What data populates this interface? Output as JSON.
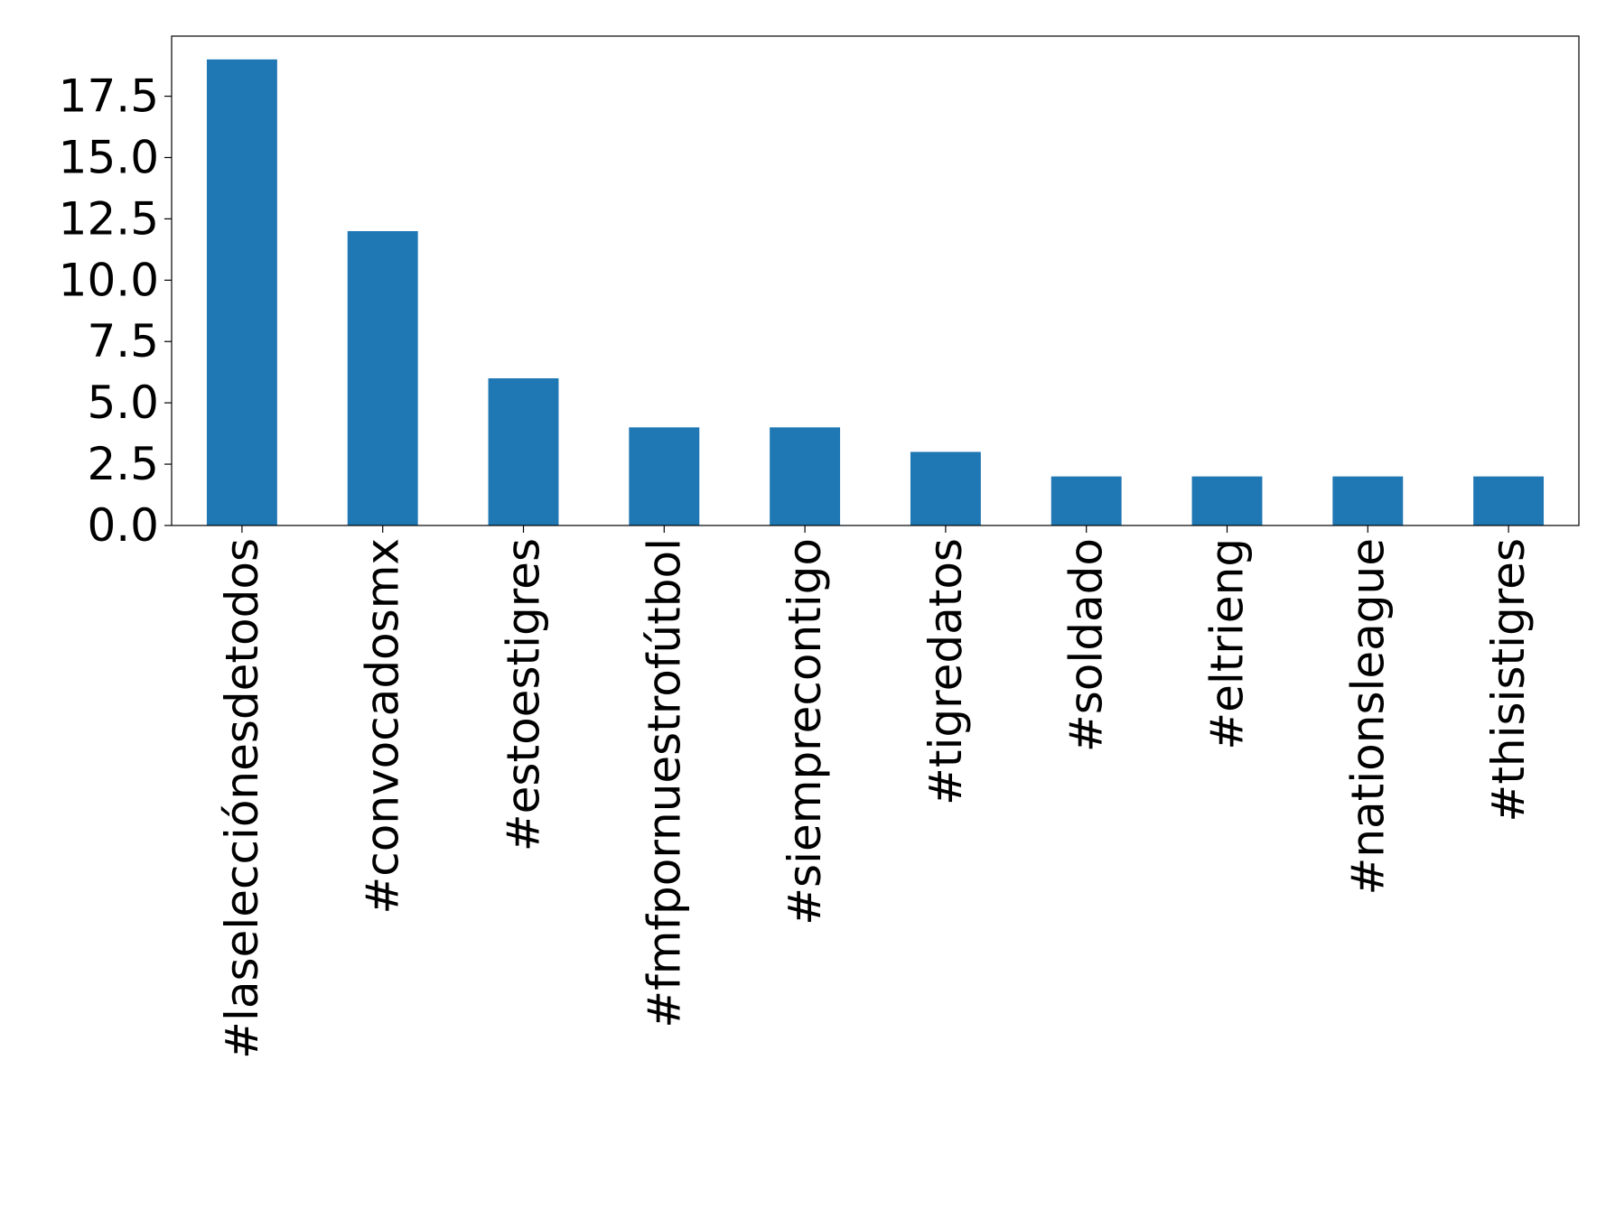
{
  "chart_data": {
    "type": "bar",
    "title": "",
    "xlabel": "",
    "ylabel": "",
    "categories": [
      "#laselecciónesdetodos",
      "#convocadosmx",
      "#estoestigres",
      "#fmfpornuestrofútbol",
      "#siemprecontigo",
      "#tigredatos",
      "#soldado",
      "#eltrieng",
      "#nationsleague",
      "#thisistigres"
    ],
    "values": [
      19,
      12,
      6,
      4,
      4,
      3,
      2,
      2,
      2,
      2
    ],
    "ylim": [
      0,
      19.95
    ],
    "yticks": [
      0,
      2.5,
      5,
      7.5,
      10,
      12.5,
      15,
      17.5
    ],
    "ytick_labels": [
      "0.0",
      "2.5",
      "5.0",
      "7.5",
      "10.0",
      "12.5",
      "15.0",
      "17.5"
    ],
    "x_tick_rotation": "vertical",
    "grid": false,
    "legend": "none",
    "bar_color": "#1f77b4"
  }
}
